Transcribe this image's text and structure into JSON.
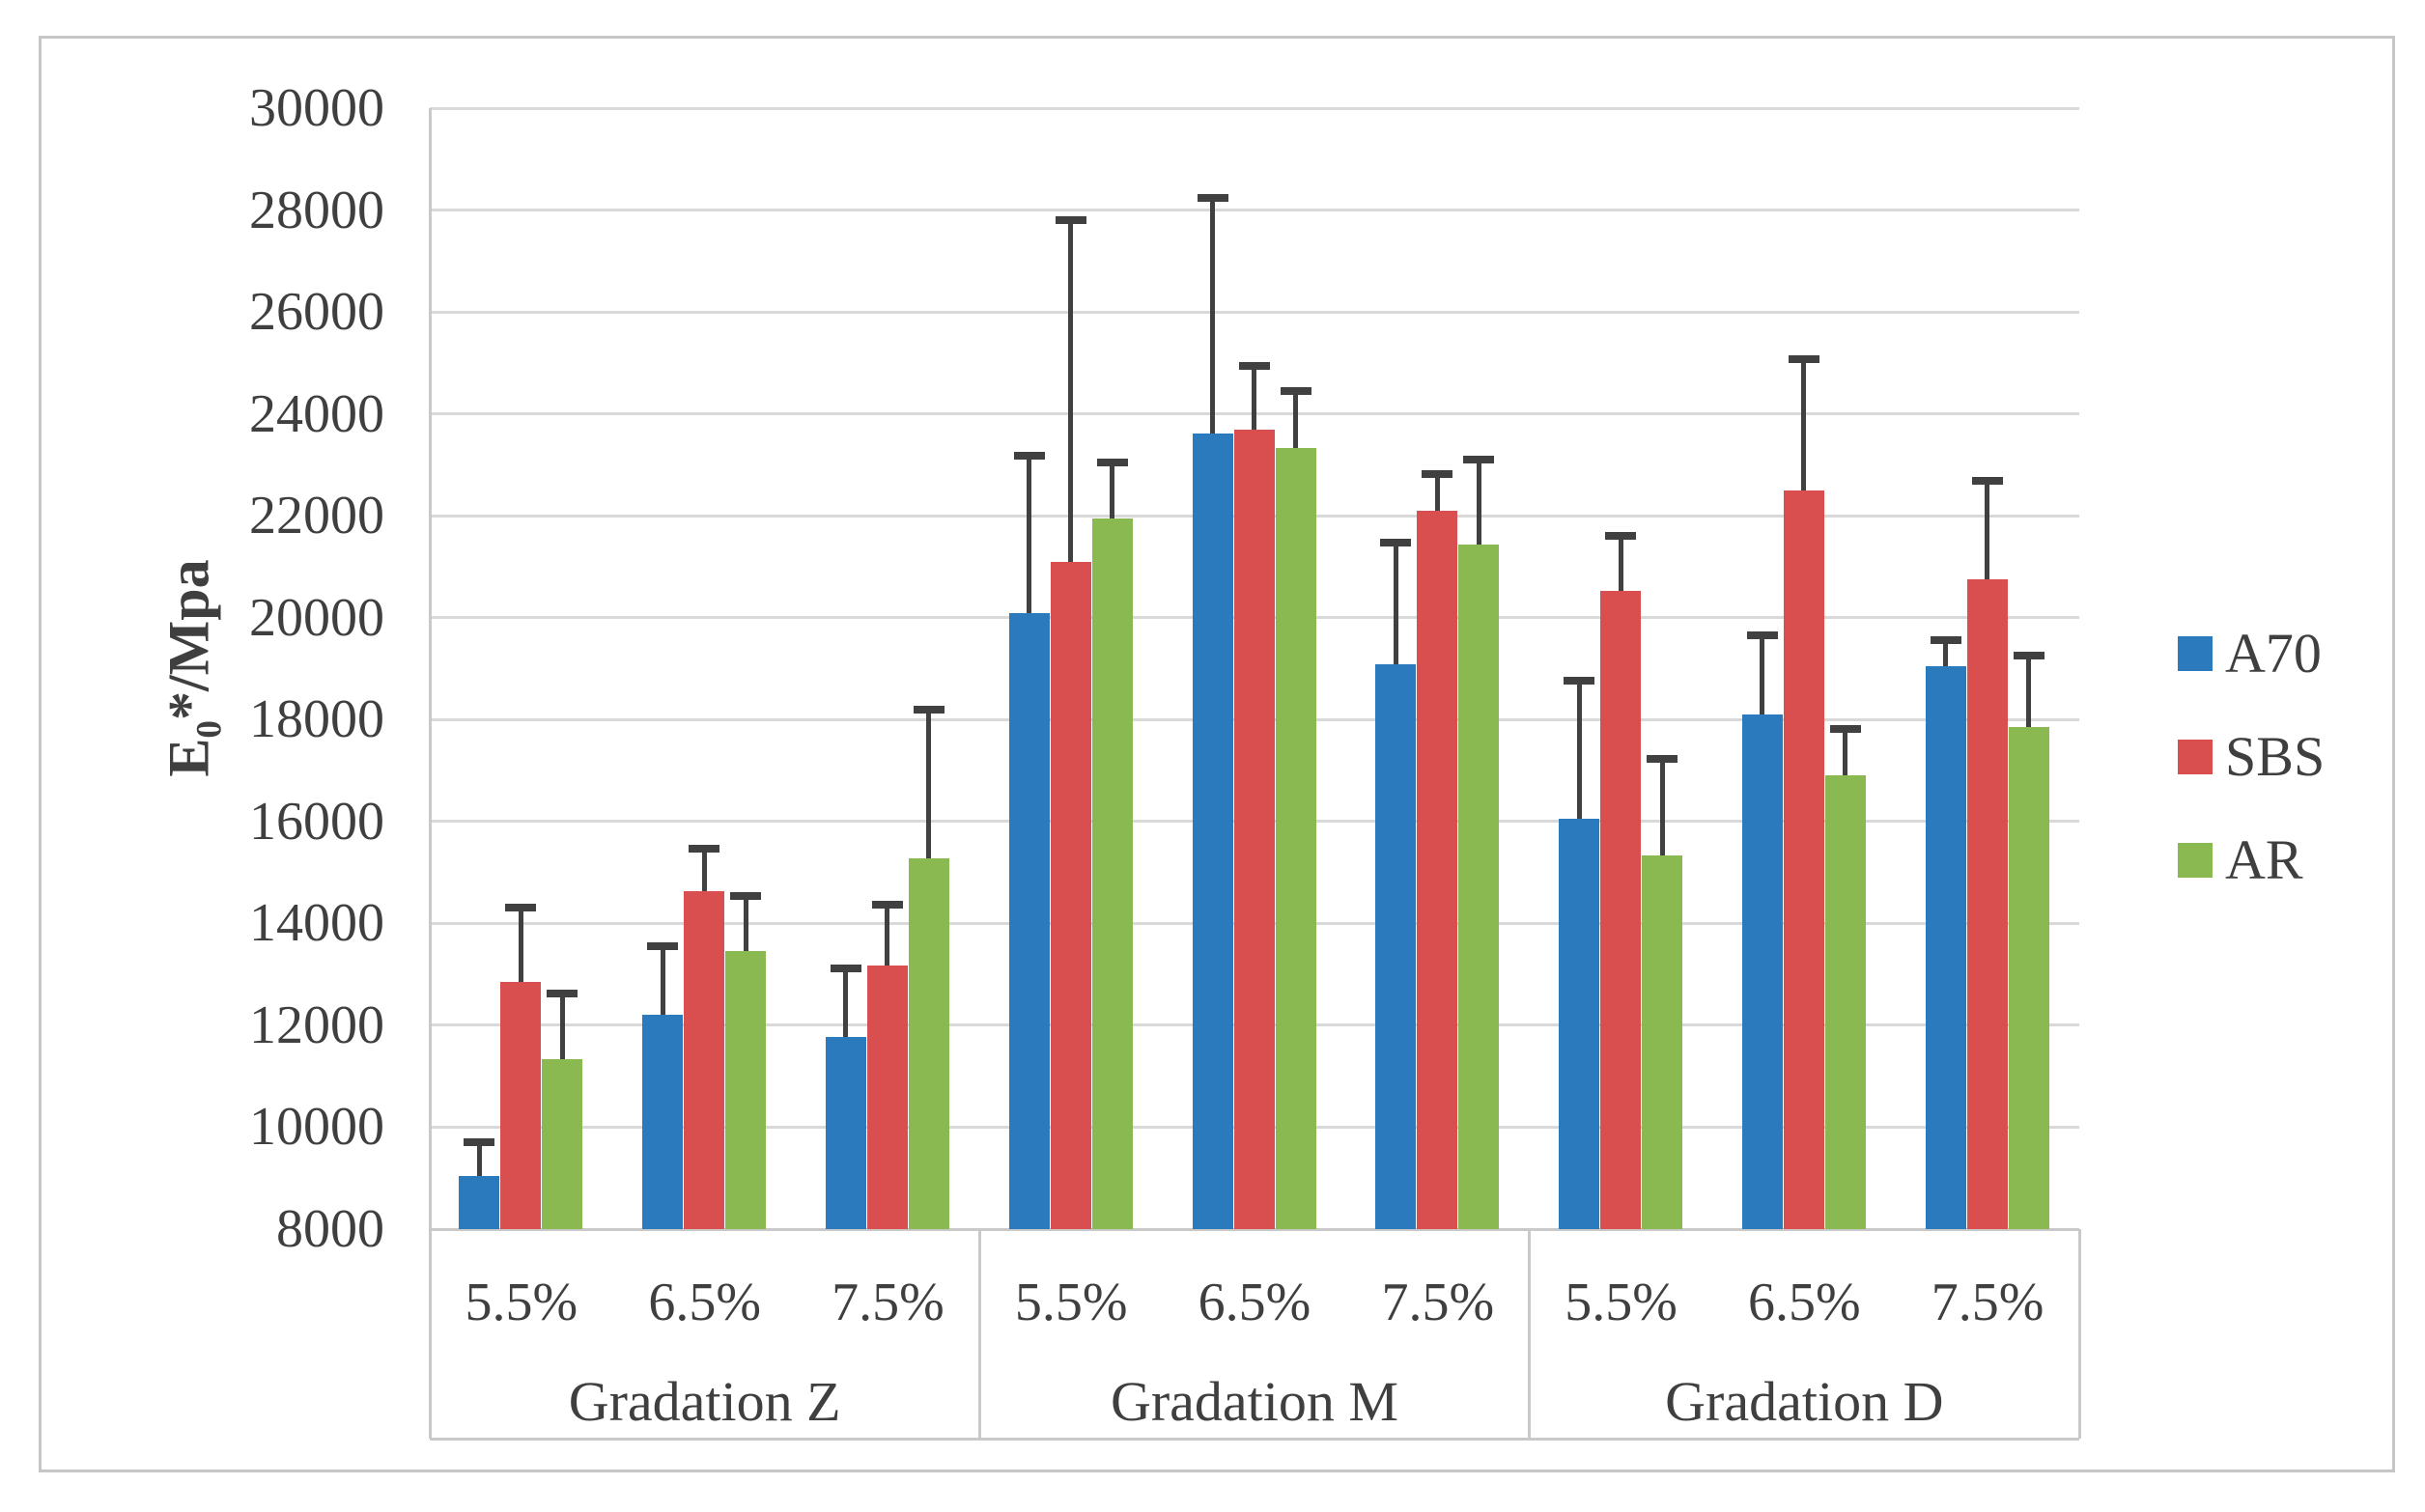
{
  "figure": {
    "background": "#ffffff",
    "border_color": "#c6c6c6"
  },
  "chart_data": {
    "type": "bar",
    "title": "",
    "ylabel_parts": {
      "base": "E",
      "sub": "0",
      "rest": "*/Mpa"
    },
    "xlabel": "",
    "grid": true,
    "legend_position": "right",
    "y_axis": {
      "min": 8000,
      "max": 30000,
      "step": 2000,
      "tick_labels": [
        "8000",
        "10000",
        "12000",
        "14000",
        "16000",
        "18000",
        "20000",
        "22000",
        "24000",
        "26000",
        "28000",
        "30000"
      ]
    },
    "groups": [
      {
        "label": "Gradation Z",
        "categories": [
          "5.5%",
          "6.5%",
          "7.5%"
        ]
      },
      {
        "label": "Gradation M",
        "categories": [
          "5.5%",
          "6.5%",
          "7.5%"
        ]
      },
      {
        "label": "Gradation D",
        "categories": [
          "5.5%",
          "6.5%",
          "7.5%"
        ]
      }
    ],
    "series": [
      {
        "name": "A70",
        "color": "#2b7abe",
        "values": [
          [
            9050,
            12200,
            11780
          ],
          [
            20090,
            23610,
            19090
          ],
          [
            16050,
            18100,
            19050
          ]
        ],
        "error_plus": [
          [
            660,
            1360,
            1330
          ],
          [
            3080,
            4630,
            2380
          ],
          [
            2720,
            1560,
            500
          ]
        ]
      },
      {
        "name": "SBS",
        "color": "#d94f4f",
        "values": [
          [
            12850,
            14630,
            13170
          ],
          [
            21100,
            23690,
            22100
          ],
          [
            20520,
            22490,
            20750
          ]
        ],
        "error_plus": [
          [
            1460,
            840,
            1200
          ],
          [
            6700,
            1250,
            710
          ],
          [
            1090,
            2590,
            1930
          ]
        ]
      },
      {
        "name": "AR",
        "color": "#8ab952",
        "values": [
          [
            11330,
            13460,
            15280
          ],
          [
            21940,
            23330,
            21440
          ],
          [
            15330,
            16900,
            17850
          ]
        ],
        "error_plus": [
          [
            1300,
            1070,
            2910
          ],
          [
            1100,
            1120,
            1660
          ],
          [
            1890,
            910,
            1400
          ]
        ]
      }
    ],
    "error_bar_color": "#404040",
    "gridline_color": "#d9d9d9"
  }
}
